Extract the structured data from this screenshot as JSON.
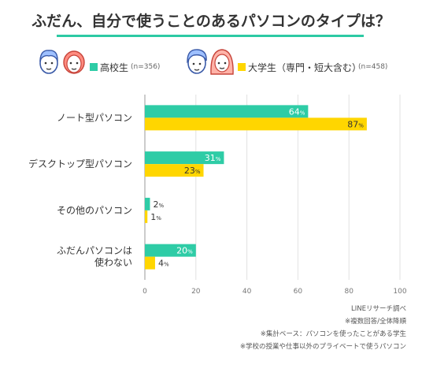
{
  "title": "ふだん、自分で使うことのあるパソコンのタイプは？",
  "legend": {
    "series1_label": "高校生",
    "series1_n": "(n=356)",
    "series2_label": "大学生（専門・短大含む）",
    "series2_n": "(n=458)"
  },
  "colors": {
    "accent": "#2dcaa4",
    "series1": "#2ecca6",
    "series2": "#ffd600"
  },
  "chart_data": {
    "type": "bar",
    "orientation": "horizontal",
    "categories": [
      [
        "ノート型パソコン"
      ],
      [
        "デスクトップ型パソコン"
      ],
      [
        "その他のパソコン"
      ],
      [
        "ふだんパソコンは",
        "使わない"
      ]
    ],
    "series": [
      {
        "name": "高校生",
        "values": [
          64,
          31,
          2,
          20
        ],
        "color": "#2ecca6"
      },
      {
        "name": "大学生（専門・短大含む）",
        "values": [
          87,
          23,
          1,
          4
        ],
        "color": "#ffd600"
      }
    ],
    "xlim": [
      0,
      100
    ],
    "xticks": [
      0,
      20,
      40,
      60,
      80,
      100
    ],
    "value_suffix": "%",
    "grid": true
  },
  "footnotes": [
    "LINEリサーチ調べ",
    "※複数回答/全体降順",
    "※集計ベース：パソコンを使ったことがある学生",
    "※学校の授業や仕事以外のプライベートで使うパソコン"
  ]
}
